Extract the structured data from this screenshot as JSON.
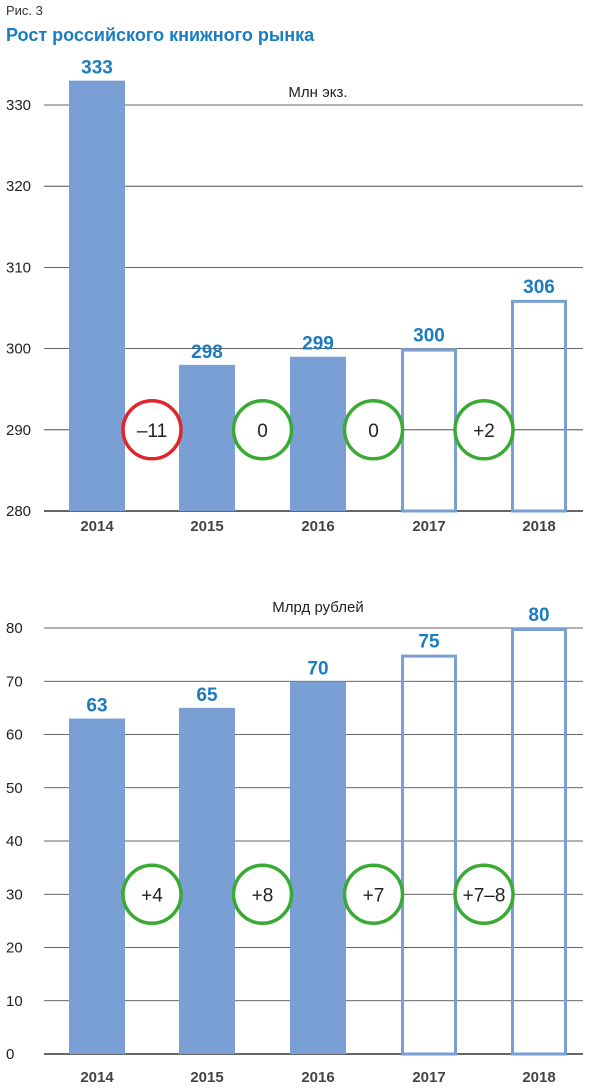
{
  "figure_label": "Рис. 3",
  "title": "Рост российского книжного рынка",
  "colors": {
    "title": "#1a7cc1",
    "bar_fill": "#7a9fd4",
    "bar_outline": "#7a9fd4",
    "value_label": "#1a7cc1",
    "growth_circle": "#3aaa35",
    "decline_circle": "#e2252b",
    "grid": "#333333"
  },
  "chart_data": [
    {
      "type": "bar",
      "unit_label": "Млн экз.",
      "categories": [
        "2014",
        "2015",
        "2016",
        "2017",
        "2018"
      ],
      "values": [
        333,
        298,
        299,
        300,
        306
      ],
      "value_labels": [
        "333",
        "298",
        "299",
        "300",
        "306"
      ],
      "forecast": [
        false,
        false,
        false,
        true,
        true
      ],
      "ylim": [
        280,
        340
      ],
      "yticks": [
        280,
        290,
        300,
        310,
        320,
        330
      ],
      "grid": true,
      "changes": [
        {
          "label": "–11",
          "trend": "decline",
          "y": 290
        },
        {
          "label": "0",
          "trend": "growth",
          "y": 290
        },
        {
          "label": "0",
          "trend": "growth",
          "y": 290
        },
        {
          "label": "+2",
          "trend": "growth",
          "y": 290
        }
      ]
    },
    {
      "type": "bar",
      "unit_label": "Млрд рублей",
      "categories": [
        "2014",
        "2015",
        "2016",
        "2017",
        "2018"
      ],
      "values": [
        63,
        65,
        70,
        75,
        80
      ],
      "value_labels": [
        "63",
        "65",
        "70",
        "75",
        "80"
      ],
      "forecast": [
        false,
        false,
        false,
        true,
        true
      ],
      "ylim": [
        0,
        80
      ],
      "yticks": [
        0,
        10,
        20,
        30,
        40,
        50,
        60,
        70,
        80
      ],
      "grid": true,
      "changes": [
        {
          "label": "+4",
          "trend": "growth",
          "y": 30
        },
        {
          "label": "+8",
          "trend": "growth",
          "y": 30
        },
        {
          "label": "+7",
          "trend": "growth",
          "y": 30
        },
        {
          "label": "+7–8",
          "trend": "growth",
          "y": 30
        }
      ]
    }
  ]
}
